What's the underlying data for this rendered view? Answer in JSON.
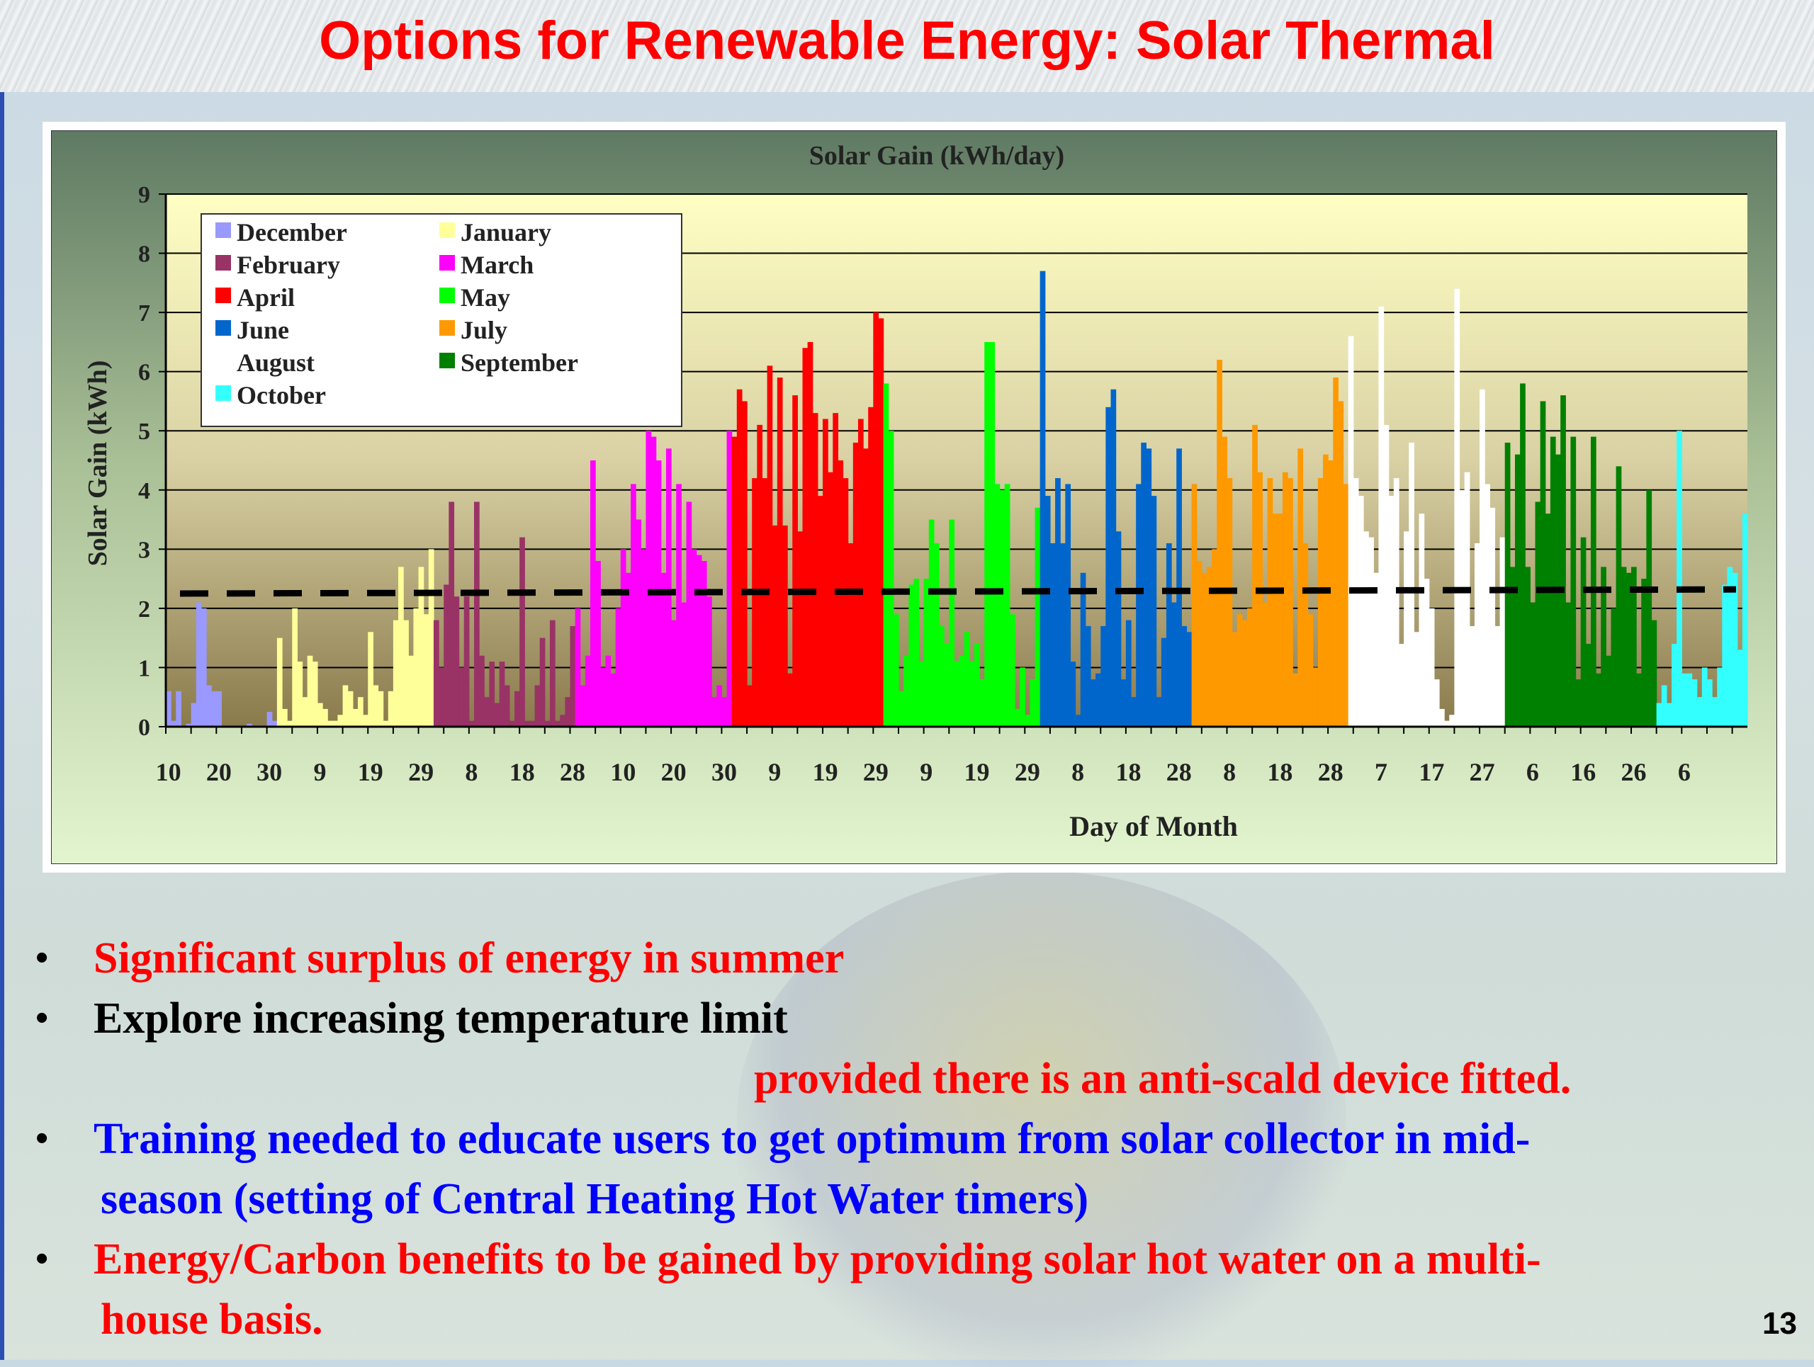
{
  "slide": {
    "title": "Options for Renewable Energy: Solar Thermal",
    "page_number": "13",
    "bullets": [
      {
        "text": "Significant surplus of energy in summer",
        "color": "#ff0000"
      },
      {
        "text": "Explore increasing temperature limit",
        "color": "#000000"
      },
      {
        "text": "provided there is an anti-scald device fitted.",
        "color": "#ff0000"
      },
      {
        "text": "Training needed to educate users to get optimum from solar collector in mid-",
        "color": "#0000ff"
      },
      {
        "text": "season (setting of Central Heating Hot Water timers)",
        "color": "#0000ff"
      },
      {
        "text": "Energy/Carbon benefits to be gained by providing solar hot water on a multi-",
        "color": "#ff0000"
      },
      {
        "text": "house basis.",
        "color": "#ff0000"
      }
    ]
  },
  "chart_data": {
    "type": "bar",
    "title": "Solar Gain (kWh/day)",
    "xlabel": "Day of Month",
    "ylabel": "Solar Gain (kWh)",
    "ylim": [
      0,
      9
    ],
    "yticks": [
      "0",
      "1",
      "2",
      "3",
      "4",
      "5",
      "6",
      "7",
      "8",
      "9"
    ],
    "xtick_labels": [
      "10",
      "20",
      "30",
      "9",
      "19",
      "29",
      "8",
      "18",
      "28",
      "10",
      "20",
      "30",
      "9",
      "19",
      "29",
      "9",
      "19",
      "29",
      "8",
      "18",
      "28",
      "8",
      "18",
      "28",
      "7",
      "17",
      "27",
      "6",
      "16",
      "26",
      "6"
    ],
    "grid": true,
    "legend_position": "top-left",
    "average_line": {
      "value": 2.25,
      "end_value": 2.32,
      "style": "dashed"
    },
    "series": [
      {
        "name": "December",
        "color": "#9999ff",
        "start_day": 10,
        "values": [
          0.6,
          0.1,
          0.6,
          0,
          0.05,
          0.4,
          2.1,
          2.0,
          0.7,
          0.6,
          0.6,
          0,
          0,
          0,
          0,
          0,
          0.05,
          0,
          0,
          0,
          0.25,
          0.1
        ]
      },
      {
        "name": "January",
        "color": "#ffff99",
        "start_day": 1,
        "values": [
          1.5,
          0.3,
          0.1,
          2.0,
          1.1,
          0.5,
          1.2,
          1.1,
          0.4,
          0.3,
          0.1,
          0.1,
          0.2,
          0.7,
          0.6,
          0.3,
          0.5,
          0.2,
          1.6,
          0.7,
          0.6,
          0.1,
          0.6,
          1.8,
          2.7,
          1.8,
          1.2,
          2.0,
          2.7,
          1.9,
          3.0
        ]
      },
      {
        "name": "February",
        "color": "#993366",
        "start_day": 1,
        "values": [
          1.8,
          1.0,
          2.4,
          3.8,
          2.2,
          1.0,
          2.2,
          0.1,
          3.8,
          1.2,
          0.5,
          1.1,
          0.4,
          1.1,
          0.7,
          0.1,
          0.6,
          3.2,
          0.1,
          0.1,
          0.7,
          1.5,
          0.1,
          1.8,
          0.1,
          0.2,
          0.5,
          1.7
        ]
      },
      {
        "name": "March",
        "color": "#ff00ff",
        "start_day": 1,
        "values": [
          2.0,
          0.7,
          1.2,
          4.5,
          2.8,
          1.0,
          1.2,
          0.9,
          2.0,
          3.0,
          2.6,
          4.1,
          3.5,
          3.0,
          5.0,
          4.9,
          4.5,
          2.6,
          4.7,
          1.8,
          4.1,
          2.1,
          3.8,
          3.0,
          2.9,
          2.8,
          2.2,
          0.5,
          0.7,
          0.5,
          5.0
        ]
      },
      {
        "name": "April",
        "color": "#ff0000",
        "start_day": 1,
        "values": [
          4.9,
          5.7,
          5.5,
          0.7,
          4.2,
          5.1,
          4.2,
          6.1,
          3.4,
          5.9,
          3.4,
          0.9,
          5.6,
          3.3,
          6.4,
          6.5,
          5.3,
          3.9,
          5.2,
          4.3,
          5.3,
          4.5,
          4.2,
          3.1,
          4.8,
          5.2,
          4.7,
          5.4,
          7.0,
          6.9
        ]
      },
      {
        "name": "May",
        "color": "#00ff00",
        "start_day": 1,
        "values": [
          5.8,
          5.0,
          1.9,
          0.6,
          1.2,
          2.4,
          2.5,
          1.1,
          2.5,
          3.5,
          3.1,
          1.7,
          1.4,
          3.5,
          1.1,
          1.2,
          1.6,
          1.1,
          1.4,
          0.8,
          6.5,
          6.5,
          4.1,
          4.0,
          4.1,
          1.9,
          0.3,
          1.0,
          0.2,
          0.8,
          3.7
        ]
      },
      {
        "name": "June",
        "color": "#0066cc",
        "start_day": 1,
        "values": [
          7.7,
          3.9,
          3.1,
          4.2,
          3.1,
          4.1,
          1.1,
          0.2,
          2.6,
          1.7,
          0.8,
          0.9,
          1.7,
          5.4,
          5.7,
          3.3,
          0.8,
          1.8,
          0.5,
          4.1,
          4.8,
          4.7,
          3.9,
          0.5,
          1.5,
          3.1,
          2.1,
          4.7,
          1.7,
          1.6
        ]
      },
      {
        "name": "July",
        "color": "#ff9900",
        "start_day": 1,
        "values": [
          4.1,
          2.8,
          2.6,
          2.7,
          3.0,
          6.2,
          4.9,
          4.2,
          1.6,
          1.9,
          1.8,
          2.0,
          5.1,
          4.3,
          2.1,
          4.2,
          3.6,
          3.6,
          4.3,
          4.2,
          0.9,
          4.7,
          3.1,
          1.9,
          1.0,
          4.2,
          4.6,
          4.5,
          5.9,
          5.5,
          4.1
        ]
      },
      {
        "name": "August",
        "color": "#ffffff",
        "start_day": 1,
        "values": [
          6.6,
          4.2,
          3.9,
          3.3,
          3.2,
          2.6,
          7.1,
          5.1,
          3.9,
          4.2,
          1.4,
          3.3,
          4.8,
          1.6,
          3.6,
          2.5,
          2.0,
          0.8,
          0.3,
          0.1,
          0.2,
          7.4,
          4.0,
          4.3,
          1.7,
          3.1,
          5.7,
          4.1,
          3.7,
          1.7,
          3.2
        ]
      },
      {
        "name": "September",
        "color": "#008000",
        "start_day": 1,
        "values": [
          4.8,
          2.7,
          4.6,
          5.8,
          2.7,
          2.1,
          3.8,
          5.5,
          3.6,
          4.9,
          4.6,
          5.6,
          2.1,
          4.9,
          0.8,
          3.2,
          1.4,
          4.9,
          0.9,
          2.7,
          1.2,
          2.0,
          4.4,
          2.7,
          2.6,
          2.7,
          0.9,
          2.5,
          4.0,
          1.8
        ]
      },
      {
        "name": "October",
        "color": "#33ffff",
        "start_day": 1,
        "values": [
          0.4,
          0.7,
          0.4,
          1.4,
          5.0,
          0.9,
          0.9,
          0.8,
          0.5,
          1.0,
          0.8,
          0.5,
          1.0,
          2.4,
          2.7,
          2.6,
          1.3,
          3.6
        ]
      }
    ]
  }
}
